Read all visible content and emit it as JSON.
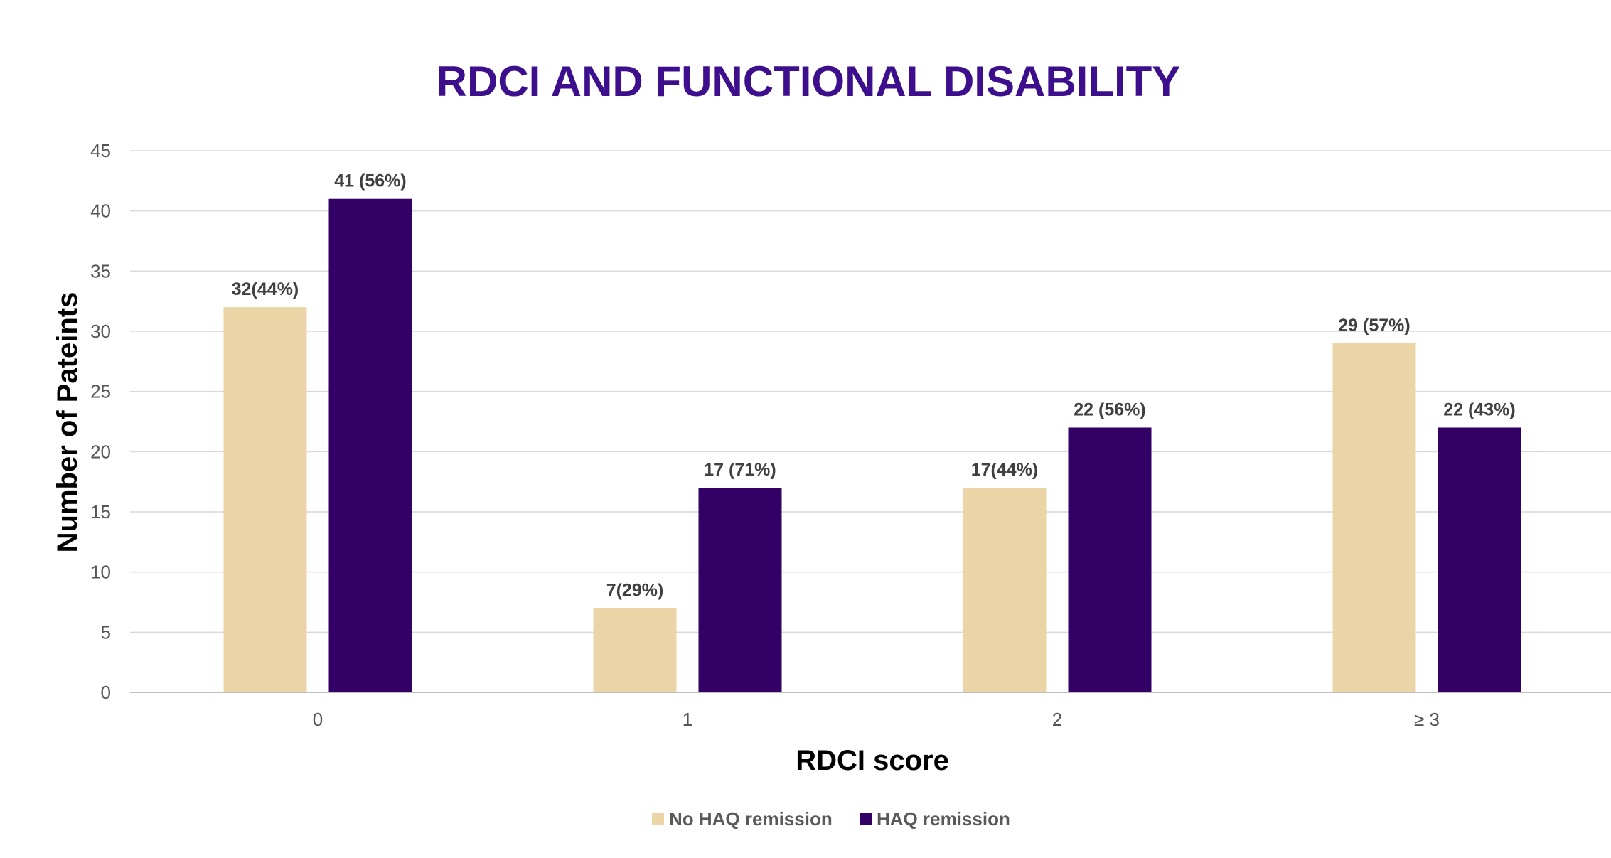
{
  "chart_data": {
    "type": "bar",
    "title": "RDCI AND FUNCTIONAL DISABILITY",
    "xlabel": "RDCI score",
    "ylabel": "Number of Pateints",
    "categories": [
      "0",
      "1",
      "2",
      "≥ 3"
    ],
    "ylim": [
      0,
      45
    ],
    "yticks": [
      0,
      5,
      10,
      15,
      20,
      25,
      30,
      35,
      40,
      45
    ],
    "grid": true,
    "legend_position": "bottom",
    "series": [
      {
        "name": "No HAQ remission",
        "color": "#ebd4a6",
        "values": [
          32,
          7,
          17,
          29
        ],
        "labels": [
          "32(44%)",
          "7(29%)",
          "17(44%)",
          "29 (57%)"
        ]
      },
      {
        "name": "HAQ remission",
        "color": "#330066",
        "values": [
          41,
          17,
          22,
          22
        ],
        "labels": [
          "41 (56%)",
          "17 (71%)",
          "22 (56%)",
          "22 (43%)"
        ]
      }
    ]
  }
}
